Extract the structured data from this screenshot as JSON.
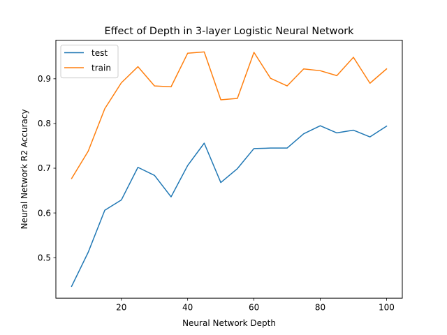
{
  "chart_data": {
    "type": "line",
    "title": "Effect of Depth in 3-layer Logistic Neural Network",
    "xlabel": "Neural Network Depth",
    "ylabel": "Neural Network R2 Accuracy",
    "x": [
      5,
      10,
      15,
      20,
      25,
      30,
      35,
      40,
      45,
      50,
      55,
      60,
      65,
      70,
      75,
      80,
      85,
      90,
      95,
      100
    ],
    "xlim": [
      0.25,
      104.75
    ],
    "ylim": [
      0.4095,
      0.9862
    ],
    "xticks": [
      20,
      40,
      60,
      80,
      100
    ],
    "yticks": [
      0.5,
      0.6,
      0.7,
      0.8,
      0.9
    ],
    "ytick_labels": [
      "0.5",
      "0.6",
      "0.7",
      "0.8",
      "0.9"
    ],
    "grid": false,
    "legend_position": "top-left",
    "series": [
      {
        "name": "test",
        "color": "#1f77b4",
        "values": [
          0.436,
          0.512,
          0.606,
          0.629,
          0.702,
          0.684,
          0.636,
          0.706,
          0.756,
          0.668,
          0.699,
          0.744,
          0.745,
          0.745,
          0.777,
          0.795,
          0.779,
          0.785,
          0.77,
          0.794
        ]
      },
      {
        "name": "train",
        "color": "#ff7f0e",
        "values": [
          0.677,
          0.738,
          0.833,
          0.891,
          0.927,
          0.884,
          0.882,
          0.957,
          0.96,
          0.853,
          0.856,
          0.959,
          0.901,
          0.884,
          0.922,
          0.918,
          0.907,
          0.948,
          0.89,
          0.922
        ]
      }
    ]
  }
}
